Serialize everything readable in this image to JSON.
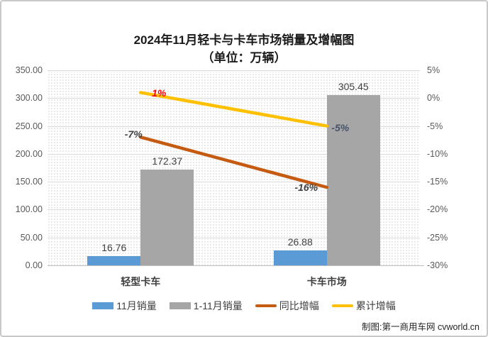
{
  "page": {
    "watermark": "制图:第一商用车网 cvworld.cn"
  },
  "chart_data": {
    "type": "combo-bar-line",
    "title": "2024年11月轻卡与卡车市场销量及增幅图",
    "subtitle": "（单位：万辆）",
    "categories": [
      "轻型卡车",
      "卡车市场"
    ],
    "left_axis": {
      "min": 0,
      "max": 350,
      "step": 50,
      "ticks": [
        "350.00",
        "300.00",
        "250.00",
        "200.00",
        "150.00",
        "100.00",
        "50.00",
        "0.00"
      ]
    },
    "right_axis": {
      "min": -30,
      "max": 5,
      "step": 5,
      "ticks": [
        "5%",
        "0%",
        "-5%",
        "-10%",
        "-15%",
        "-20%",
        "-25%",
        "-30%"
      ]
    },
    "bar_series": [
      {
        "name": "11月销量",
        "color": "#5B9BD5",
        "values": [
          16.76,
          26.88
        ],
        "labels": [
          "16.76",
          "26.88"
        ]
      },
      {
        "name": "1-11月销量",
        "color": "#A6A6A6",
        "values": [
          172.37,
          305.45
        ],
        "labels": [
          "172.37",
          "305.45"
        ]
      }
    ],
    "line_series": [
      {
        "name": "同比增幅",
        "color": "#C55A11",
        "values": [
          -7,
          -16
        ],
        "labels": [
          "-7%",
          "-16%"
        ],
        "label_colors": [
          "#404040",
          "#404040"
        ]
      },
      {
        "name": "累计增幅",
        "color": "#FFC000",
        "values": [
          1,
          -5
        ],
        "labels": [
          "1%",
          "-5%"
        ],
        "label_colors": [
          "#FF0000",
          "#44546A"
        ]
      }
    ],
    "legend_position": "bottom",
    "grid": true
  }
}
